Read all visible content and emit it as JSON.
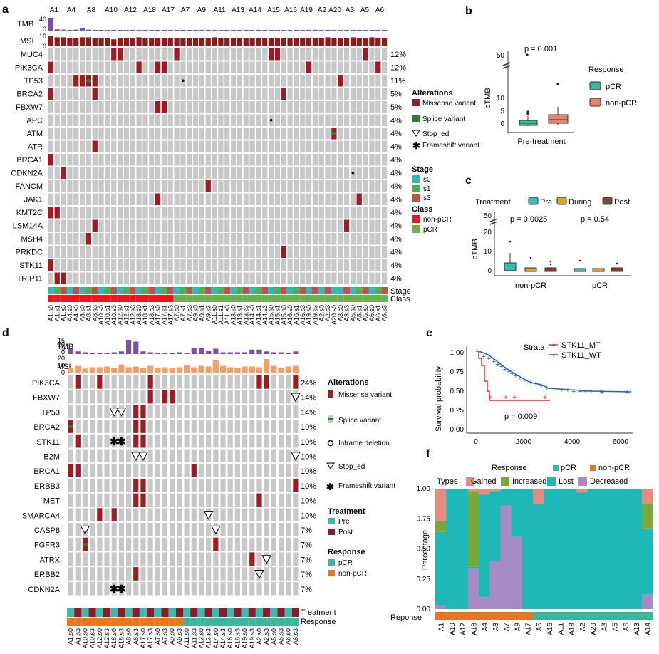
{
  "colors": {
    "grey": "#c8c8c8",
    "missense": "#9b1c24",
    "splice": "#2e7d32",
    "tmb": "#7b4fa6",
    "msi_a": "#8b1c1c",
    "msi_d": "#f0a070",
    "s0": "#35b8b8",
    "s1": "#4caf50",
    "s3": "#c0504d",
    "nonpcr_a": "#e31a1c",
    "pcr_a": "#6ab04c",
    "pre": "#3bbab0",
    "post": "#8b1a2a",
    "pcr": "#3bb89a",
    "nonpcr": "#e8771f",
    "during": "#e0a030",
    "mt": "#e03030",
    "wt": "#2f5fa8",
    "gained": "#ea8a7e",
    "increased": "#7aa63a",
    "lost": "#1fb8b8",
    "decreased": "#a78bc4"
  },
  "panel_labels": {
    "a": "a",
    "b": "b",
    "c": "c",
    "d": "d",
    "e": "e",
    "f": "f"
  },
  "panel_a": {
    "patients": [
      "A1",
      "A4",
      "A8",
      "A10",
      "A12",
      "A18",
      "A17",
      "A7",
      "A9",
      "A11",
      "A13",
      "A14",
      "A15",
      "A16",
      "A19",
      "A2",
      "A20",
      "A3",
      "A5",
      "A6"
    ],
    "track_labels": {
      "tmb": "TMB",
      "msi": "MSI",
      "tmb_max": "40",
      "tmb_min": "0",
      "msi_max": "10",
      "msi_min": "0"
    },
    "genes": [
      "MUC4",
      "PIK3CA",
      "TP53",
      "BRCA2",
      "FBXW7",
      "APC",
      "ATM",
      "ATR",
      "BRCA1",
      "CDKN2A",
      "FANCM",
      "JAK1",
      "KMT2C",
      "LSM14A",
      "MSH4",
      "PRKDC",
      "STK11",
      "TRIP11"
    ],
    "percents": [
      "12%",
      "12%",
      "11%",
      "5%",
      "5%",
      "4%",
      "4%",
      "4%",
      "4%",
      "4%",
      "4%",
      "4%",
      "4%",
      "4%",
      "4%",
      "4%",
      "4%",
      "4%"
    ],
    "samples": [
      "A1.s0",
      "A1.s1",
      "A1.s3",
      "A4.s0",
      "A4.s3",
      "A8.s0",
      "A8.s1",
      "A8.s3",
      "A10.s0",
      "A10.s1",
      "A10.s3",
      "A12.s0",
      "A12.s1",
      "A12.s3",
      "A18.s0",
      "A18.s1",
      "A18.s3",
      "A17.s0",
      "A17.s1",
      "A17.s3",
      "A7.s0",
      "A7.s1",
      "A7.s3",
      "A9.s0",
      "A9.s1",
      "A9.s3",
      "A11.s0",
      "A11.s1",
      "A11.s3",
      "A13.s0",
      "A13.s1",
      "A13.s3",
      "A14.s0",
      "A14.s1",
      "A14.s3",
      "A15.s0",
      "A15.s1",
      "A15.s3",
      "A16.s0",
      "A16.s1",
      "A16.s3",
      "A19.s0",
      "A19.s3",
      "A2.s0",
      "A2.s3",
      "A20.s0",
      "A3.s0",
      "A3.s3",
      "A5.s0",
      "A5.s1",
      "A5.s3",
      "A6.s0",
      "A6.s1",
      "A6.s3"
    ],
    "tmb": [
      40,
      4,
      3,
      2,
      3,
      8,
      3,
      2,
      2,
      2,
      2,
      2,
      2,
      2,
      2,
      2,
      2,
      2,
      2,
      2,
      2,
      2,
      2,
      2,
      2,
      2,
      2,
      2,
      2,
      2,
      2,
      2,
      2,
      2,
      2,
      2,
      2,
      2,
      2,
      2,
      2,
      2,
      2,
      2,
      2,
      2,
      2,
      2,
      2,
      2,
      2,
      2,
      2,
      2
    ],
    "msi": [
      10,
      9,
      9,
      8,
      8,
      9,
      9,
      8,
      8,
      8,
      7,
      8,
      8,
      8,
      9,
      8,
      8,
      8,
      8,
      8,
      8,
      8,
      8,
      8,
      8,
      8,
      9,
      8,
      8,
      8,
      8,
      8,
      8,
      8,
      8,
      8,
      8,
      8,
      8,
      8,
      8,
      8,
      8,
      8,
      9,
      8,
      8,
      8,
      9,
      8,
      8,
      9,
      8,
      8
    ],
    "alterations": [
      [
        0,
        10,
        "M"
      ],
      [
        0,
        11,
        "M"
      ],
      [
        0,
        20,
        "M"
      ],
      [
        0,
        35,
        "M"
      ],
      [
        0,
        36,
        "M"
      ],
      [
        0,
        50,
        "M"
      ],
      [
        1,
        0,
        "M"
      ],
      [
        1,
        14,
        "M"
      ],
      [
        1,
        17,
        "M"
      ],
      [
        1,
        18,
        "M"
      ],
      [
        1,
        41,
        "M"
      ],
      [
        1,
        52,
        "M"
      ],
      [
        2,
        4,
        "M"
      ],
      [
        2,
        5,
        "M"
      ],
      [
        2,
        6,
        "S"
      ],
      [
        2,
        7,
        "M"
      ],
      [
        2,
        21,
        "F"
      ],
      [
        2,
        46,
        "M"
      ],
      [
        3,
        0,
        "M"
      ],
      [
        3,
        7,
        "M"
      ],
      [
        3,
        37,
        "M"
      ],
      [
        4,
        17,
        "M"
      ],
      [
        4,
        18,
        "M"
      ],
      [
        5,
        35,
        "F"
      ],
      [
        6,
        45,
        "S"
      ],
      [
        7,
        7,
        "M"
      ],
      [
        8,
        0,
        "M"
      ],
      [
        9,
        2,
        "M"
      ],
      [
        9,
        48,
        "F"
      ],
      [
        10,
        25,
        "M"
      ],
      [
        11,
        17,
        "M"
      ],
      [
        11,
        49,
        "M"
      ],
      [
        12,
        0,
        "M"
      ],
      [
        12,
        1,
        "M"
      ],
      [
        13,
        7,
        "M"
      ],
      [
        13,
        47,
        "M"
      ],
      [
        14,
        6,
        "M"
      ],
      [
        15,
        37,
        "M"
      ],
      [
        16,
        0,
        "M"
      ],
      [
        17,
        1,
        "M"
      ],
      [
        17,
        2,
        "M"
      ]
    ],
    "stage": [
      "s0",
      "s1",
      "s3",
      "s0",
      "s3",
      "s0",
      "s1",
      "s3",
      "s0",
      "s1",
      "s3",
      "s0",
      "s1",
      "s3",
      "s0",
      "s1",
      "s3",
      "s0",
      "s1",
      "s3",
      "s0",
      "s1",
      "s3",
      "s0",
      "s1",
      "s3",
      "s0",
      "s1",
      "s3",
      "s0",
      "s1",
      "s3",
      "s0",
      "s1",
      "s3",
      "s0",
      "s1",
      "s3",
      "s0",
      "s1",
      "s3",
      "s0",
      "s3",
      "s0",
      "s3",
      "s0",
      "s0",
      "s3",
      "s0",
      "s1",
      "s3",
      "s0",
      "s1",
      "s3"
    ],
    "class": [
      "n",
      "n",
      "n",
      "n",
      "n",
      "n",
      "n",
      "n",
      "n",
      "n",
      "n",
      "n",
      "n",
      "n",
      "n",
      "n",
      "n",
      "n",
      "n",
      "n",
      "p",
      "p",
      "p",
      "p",
      "p",
      "p",
      "p",
      "p",
      "p",
      "p",
      "p",
      "p",
      "p",
      "p",
      "p",
      "p",
      "p",
      "p",
      "p",
      "p",
      "p",
      "p",
      "p",
      "p",
      "p",
      "p",
      "p",
      "p",
      "p",
      "p",
      "p",
      "p",
      "p",
      "p"
    ],
    "bar_labels": {
      "stage": "Stage",
      "class": "Class"
    },
    "legend": {
      "alterations_title": "Alterations",
      "missense": "Missense variant",
      "splice": "Splice variant",
      "stop": "Stop_ed",
      "frameshift": "Frameshift variant",
      "stage_title": "Stage",
      "s0": "s0",
      "s1": "s1",
      "s3": "s3",
      "class_title": "Class",
      "nonpcr": "non-pCR",
      "pcr": "pCR"
    }
  },
  "panel_b": {
    "pvalue": "p = 0.001",
    "ylabel": "bTMB",
    "xlabel": "Pre-treatment",
    "ticks": [
      "0",
      "5",
      "10",
      "50"
    ],
    "legend_title": "Response",
    "legend": [
      "pCR",
      "non-pCR"
    ]
  },
  "panel_c": {
    "legend_title": "Treatment",
    "legend": [
      "Pre",
      "During",
      "Post"
    ],
    "ylabel": "bTMB",
    "ticks": [
      "0",
      "10",
      "20",
      "50"
    ],
    "groups": [
      "non-pCR",
      "pCR"
    ],
    "pvalues": [
      "p = 0.0025",
      "p = 0.54"
    ]
  },
  "panel_d": {
    "track_labels": {
      "tmb": "TMB",
      "msi": "MSI",
      "tmb_ticks": [
        "15",
        "10",
        "5",
        "0"
      ],
      "msi_ticks": [
        "20",
        "10",
        "0"
      ]
    },
    "genes": [
      "PIK3CA",
      "FBXW7",
      "TP53",
      "BRCA2",
      "STK11",
      "B2M",
      "BRCA1",
      "ERBB3",
      "MET",
      "SMARCA4",
      "CASP8",
      "FGFR3",
      "ATRX",
      "ERBB2",
      "CDKN2A"
    ],
    "percents": [
      "24%",
      "14%",
      "14%",
      "10%",
      "10%",
      "10%",
      "10%",
      "10%",
      "10%",
      "10%",
      "7%",
      "7%",
      "7%",
      "7%",
      "7%"
    ],
    "samples": [
      "A1.s0",
      "A1.s3",
      "A10.s0",
      "A10.s3",
      "A12.s0",
      "A12.s3",
      "A18.s0",
      "A18.s3",
      "A8.s0",
      "A8.s3",
      "A17.s0",
      "A17.s3",
      "A7.s0",
      "A7.s3",
      "A9.s0",
      "A9.s3",
      "A11.s0",
      "A11.s3",
      "A13.s0",
      "A13.s3",
      "A14.s0",
      "A14.s3",
      "A16.s0",
      "A16.s3",
      "A19.s0",
      "A19.s3",
      "A2.s0",
      "A2.s3",
      "A5.s0",
      "A5.s3",
      "A6.s0",
      "A6.s3"
    ],
    "tmb": [
      6,
      3,
      2,
      1,
      1,
      1,
      2,
      3,
      16,
      14,
      3,
      2,
      1,
      1,
      1,
      2,
      1,
      7,
      7,
      4,
      6,
      2,
      2,
      2,
      2,
      5,
      5,
      3,
      2,
      2,
      1,
      3
    ],
    "msi": [
      8,
      11,
      7,
      9,
      9,
      10,
      8,
      13,
      9,
      10,
      8,
      11,
      8,
      9,
      8,
      9,
      12,
      9,
      11,
      10,
      19,
      11,
      9,
      8,
      10,
      10,
      9,
      21,
      11,
      8,
      10,
      11
    ],
    "alterations": [
      [
        0,
        1,
        "M"
      ],
      [
        0,
        4,
        "M"
      ],
      [
        0,
        11,
        "M"
      ],
      [
        0,
        26,
        "M"
      ],
      [
        0,
        27,
        "M"
      ],
      [
        0,
        31,
        "M"
      ],
      [
        1,
        11,
        "M"
      ],
      [
        1,
        13,
        "M"
      ],
      [
        1,
        14,
        "M"
      ],
      [
        1,
        31,
        "S"
      ],
      [
        2,
        6,
        "S"
      ],
      [
        2,
        7,
        "S"
      ],
      [
        2,
        9,
        "M"
      ],
      [
        2,
        10,
        "M"
      ],
      [
        3,
        0,
        "G"
      ],
      [
        3,
        9,
        "M"
      ],
      [
        3,
        10,
        "M"
      ],
      [
        4,
        1,
        "M"
      ],
      [
        4,
        6,
        "F"
      ],
      [
        4,
        7,
        "F"
      ],
      [
        4,
        9,
        "M"
      ],
      [
        4,
        10,
        "M"
      ],
      [
        5,
        9,
        "S"
      ],
      [
        5,
        10,
        "S"
      ],
      [
        5,
        31,
        "S"
      ],
      [
        6,
        0,
        "M"
      ],
      [
        6,
        1,
        "M"
      ],
      [
        6,
        17,
        "M"
      ],
      [
        7,
        9,
        "M"
      ],
      [
        7,
        10,
        "M"
      ],
      [
        7,
        31,
        "M"
      ],
      [
        8,
        9,
        "M"
      ],
      [
        8,
        10,
        "M"
      ],
      [
        8,
        26,
        "M"
      ],
      [
        9,
        4,
        "M"
      ],
      [
        9,
        6,
        "M"
      ],
      [
        9,
        19,
        "S"
      ],
      [
        10,
        2,
        "S"
      ],
      [
        10,
        20,
        "S"
      ],
      [
        11,
        2,
        "G"
      ],
      [
        11,
        20,
        "M"
      ],
      [
        12,
        25,
        "M"
      ],
      [
        12,
        27,
        "S"
      ],
      [
        13,
        9,
        "M"
      ],
      [
        13,
        26,
        "S"
      ],
      [
        14,
        6,
        "F"
      ],
      [
        14,
        7,
        "F"
      ]
    ],
    "treatment": [
      "pre",
      "post",
      "pre",
      "post",
      "pre",
      "post",
      "pre",
      "post",
      "pre",
      "post",
      "pre",
      "post",
      "pre",
      "post",
      "pre",
      "post",
      "pre",
      "post",
      "pre",
      "post",
      "pre",
      "post",
      "pre",
      "post",
      "pre",
      "post",
      "pre",
      "post",
      "pre",
      "post",
      "pre",
      "post"
    ],
    "response": [
      "n",
      "n",
      "n",
      "n",
      "n",
      "n",
      "n",
      "n",
      "n",
      "n",
      "n",
      "n",
      "n",
      "n",
      "n",
      "n",
      "p",
      "p",
      "p",
      "p",
      "p",
      "p",
      "p",
      "p",
      "p",
      "p",
      "p",
      "p",
      "p",
      "p",
      "p",
      "p"
    ],
    "bar_labels": {
      "treatment": "Treatment",
      "response": "Response"
    },
    "legend": {
      "alterations_title": "Alterations",
      "missense": "Missense variant",
      "splice": "Splice variant",
      "inframe": "Inframe deletion",
      "stop": "Stop_ed",
      "frameshift": "Frameshift variant",
      "treatment_title": "Treatment",
      "pre": "Pre",
      "post": "Post",
      "response_title": "Response",
      "pcr": "pCR",
      "nonpcr": "non-pCR"
    }
  },
  "panel_e": {
    "strata_title": "Strata",
    "strata": [
      "STK11_MT",
      "STK11_WT"
    ],
    "ylabel": "Survival probability",
    "yticks": [
      "0.00",
      "0.25",
      "0.50",
      "0.75",
      "1.00"
    ],
    "xticks": [
      "0",
      "2000",
      "4000",
      "6000"
    ],
    "pvalue": "p = 0.009"
  },
  "panel_f": {
    "response_title": "Response",
    "response_legend": [
      "pCR",
      "non-pCR"
    ],
    "types_title": "Types",
    "types": [
      "Gained",
      "Increased",
      "Lost",
      "Decreased"
    ],
    "ylabel": "Percentage",
    "yticks": [
      "0.00",
      "0.25",
      "0.50",
      "0.75",
      "1.00"
    ],
    "response_row_label": "Reponse",
    "chart_data": {
      "type": "stacked-bar",
      "categories": [
        "A1",
        "A10",
        "A12",
        "A18",
        "A4",
        "A8",
        "A7",
        "A9",
        "A17",
        "A5",
        "A16",
        "A11",
        "A19",
        "A2",
        "A20",
        "A3",
        "A5",
        "A6",
        "A13",
        "A14"
      ],
      "response": [
        "n",
        "n",
        "n",
        "n",
        "n",
        "n",
        "n",
        "n",
        "n",
        "p",
        "p",
        "p",
        "p",
        "p",
        "p",
        "p",
        "p",
        "p",
        "p",
        "p"
      ],
      "series": [
        {
          "name": "Gained",
          "values": [
            0.27,
            0,
            0,
            0.02,
            0.05,
            0.02,
            0,
            0,
            0,
            0.13,
            0,
            0,
            0,
            0.03,
            0,
            0,
            0,
            0,
            0,
            0.12
          ]
        },
        {
          "name": "Increased",
          "values": [
            0.09,
            0,
            0,
            0.63,
            0,
            0,
            0,
            0,
            0,
            0,
            0,
            0,
            0,
            0,
            0,
            0,
            0,
            0,
            0,
            0.21
          ]
        },
        {
          "name": "Lost",
          "values": [
            0.61,
            1,
            1,
            0.01,
            0.85,
            0.58,
            0.14,
            0.4,
            1,
            0.87,
            1,
            1,
            1,
            0.97,
            1,
            1,
            1,
            1,
            1,
            0.55
          ]
        },
        {
          "name": "Decreased",
          "values": [
            0.03,
            0,
            0,
            0.34,
            0.1,
            0.4,
            0.86,
            0.6,
            0,
            0,
            0,
            0,
            0,
            0,
            0,
            0,
            0,
            0,
            0,
            0.12
          ]
        }
      ]
    }
  }
}
